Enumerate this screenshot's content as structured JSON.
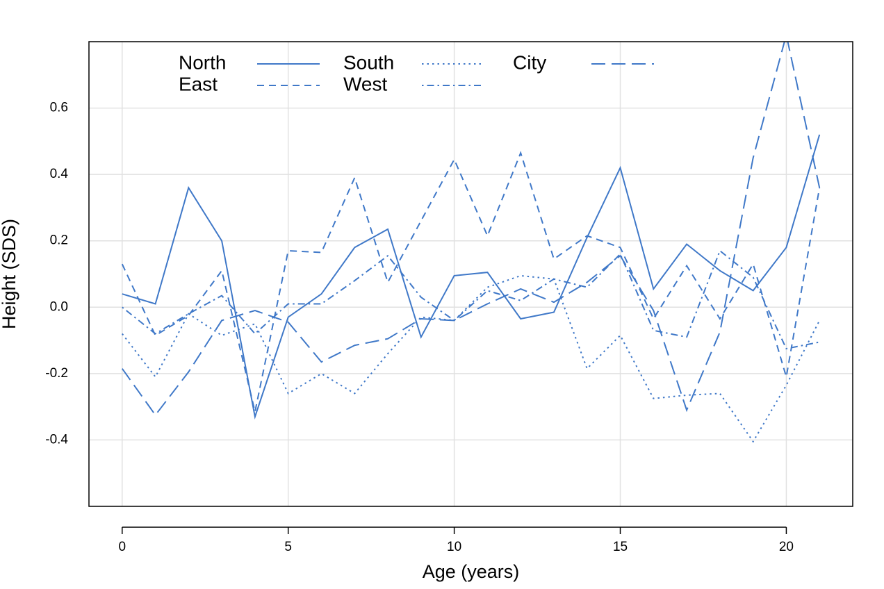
{
  "chart_data": {
    "type": "line",
    "title": "",
    "xlabel": "Age (years)",
    "ylabel": "Height (SDS)",
    "xlim": [
      -1,
      22
    ],
    "ylim": [
      -0.6,
      0.8
    ],
    "x_ticks": [
      0,
      5,
      10,
      15,
      20
    ],
    "y_ticks": [
      -0.4,
      -0.2,
      0.0,
      0.2,
      0.4,
      0.6
    ],
    "y_tick_labels": [
      "-0.4",
      "-0.2",
      "0.0",
      "0.2",
      "0.4",
      "0.6"
    ],
    "grid": true,
    "legend_position": "top",
    "line_color": "#3f78c8",
    "x": [
      0,
      1,
      2,
      3,
      4,
      5,
      6,
      7,
      8,
      9,
      10,
      11,
      12,
      13,
      14,
      15,
      16,
      17,
      18,
      19,
      20,
      21
    ],
    "series": [
      {
        "name": "North",
        "dash": "solid",
        "values": [
          0.04,
          0.01,
          0.36,
          0.2,
          -0.33,
          -0.03,
          0.04,
          0.18,
          0.235,
          -0.09,
          0.095,
          0.105,
          -0.035,
          -0.015,
          0.21,
          0.42,
          0.055,
          0.19,
          0.11,
          0.05,
          0.18,
          0.52
        ]
      },
      {
        "name": "East",
        "dash": "dashed",
        "values": [
          0.13,
          -0.085,
          -0.025,
          0.11,
          -0.315,
          0.17,
          0.165,
          0.39,
          0.075,
          0.26,
          0.445,
          0.215,
          0.465,
          0.145,
          0.215,
          0.18,
          -0.035,
          0.125,
          -0.035,
          0.13,
          -0.21,
          0.36
        ]
      },
      {
        "name": "South",
        "dash": "dotted",
        "values": [
          -0.08,
          -0.21,
          -0.02,
          -0.085,
          -0.05,
          -0.26,
          -0.2,
          -0.26,
          -0.14,
          -0.03,
          -0.04,
          0.06,
          0.095,
          0.085,
          -0.185,
          -0.085,
          -0.275,
          -0.265,
          -0.26,
          -0.405,
          -0.235,
          -0.04
        ]
      },
      {
        "name": "West",
        "dash": "dashdot",
        "values": [
          0.0,
          -0.08,
          -0.02,
          0.035,
          -0.08,
          0.01,
          0.01,
          0.08,
          0.155,
          0.03,
          -0.04,
          0.05,
          0.02,
          0.085,
          0.06,
          0.16,
          -0.07,
          -0.09,
          0.17,
          0.09,
          -0.125,
          -0.105
        ]
      },
      {
        "name": "City",
        "dash": "longdash",
        "values": [
          -0.185,
          -0.325,
          -0.195,
          -0.04,
          -0.01,
          -0.045,
          -0.165,
          -0.115,
          -0.095,
          -0.035,
          -0.04,
          0.01,
          0.055,
          0.015,
          0.075,
          0.155,
          -0.01,
          -0.31,
          -0.075,
          0.45,
          0.82,
          0.36
        ]
      }
    ]
  }
}
